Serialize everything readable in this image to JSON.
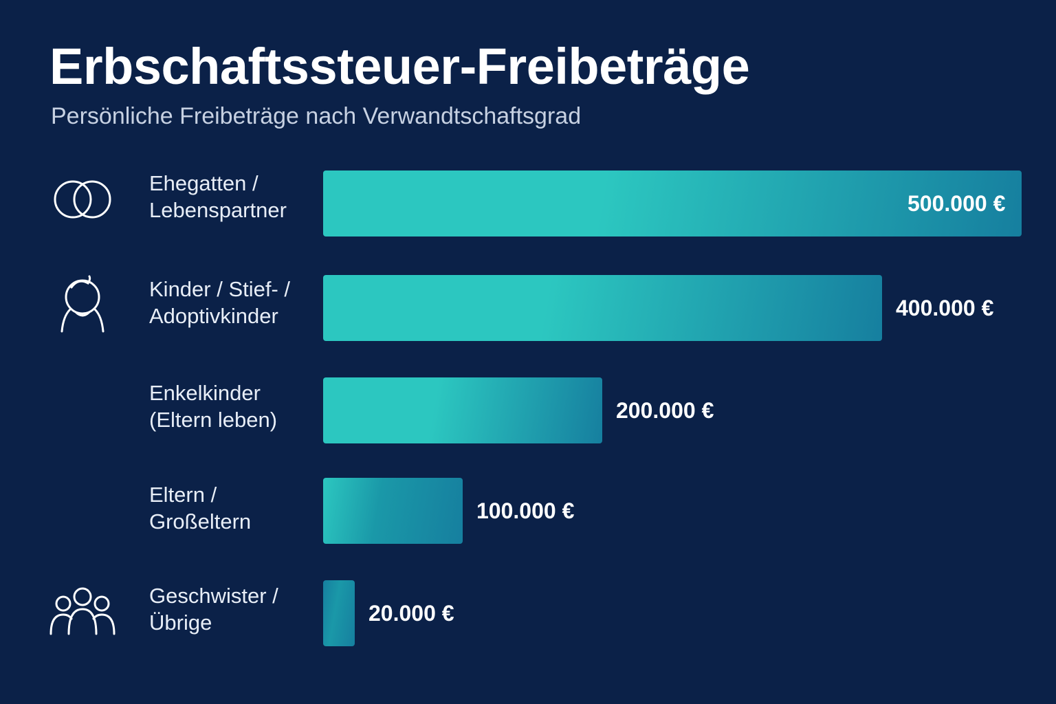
{
  "header": {
    "title": "Erbschaftssteuer-Freibeträge",
    "subtitle": "Persönliche Freibeträge nach Verwandtschaftsgrad"
  },
  "colors": {
    "background": "#0b2148",
    "bar_light": "#2cc7c0",
    "bar_dark": "#167f9f"
  },
  "chart_data": {
    "type": "bar",
    "orientation": "horizontal",
    "categories": [
      "Ehegatten / Lebenspartner",
      "Kinder / Stief- / Adoptivkinder",
      "Enkelkinder (Eltern leben)",
      "Eltern / Großeltern",
      "Geschwister / Übrige"
    ],
    "values": [
      500000,
      400000,
      200000,
      100000,
      20000
    ],
    "value_labels": [
      "500.000 €",
      "400.000 €",
      "200.000 €",
      "100.000 €",
      "20.000 €"
    ],
    "title": "Erbschaftssteuer-Freibeträge",
    "subtitle": "Persönliche Freibeträge nach Verwandtschaftsgrad",
    "xlim": [
      0,
      500000
    ],
    "grid": false,
    "legend": "none"
  },
  "rows": [
    {
      "label_line1": "Ehegatten /",
      "label_line2": "Lebenspartner",
      "icon": "rings-icon"
    },
    {
      "label_line1": "Kinder / Stief- /",
      "label_line2": "Adoptivkinder",
      "icon": "child-icon"
    },
    {
      "label_line1": "Enkelkinder",
      "label_line2": "(Eltern leben)",
      "icon": ""
    },
    {
      "label_line1": "Eltern /",
      "label_line2": "Großeltern",
      "icon": ""
    },
    {
      "label_line1": "Geschwister /",
      "label_line2": "Übrige",
      "icon": "group-icon"
    }
  ]
}
